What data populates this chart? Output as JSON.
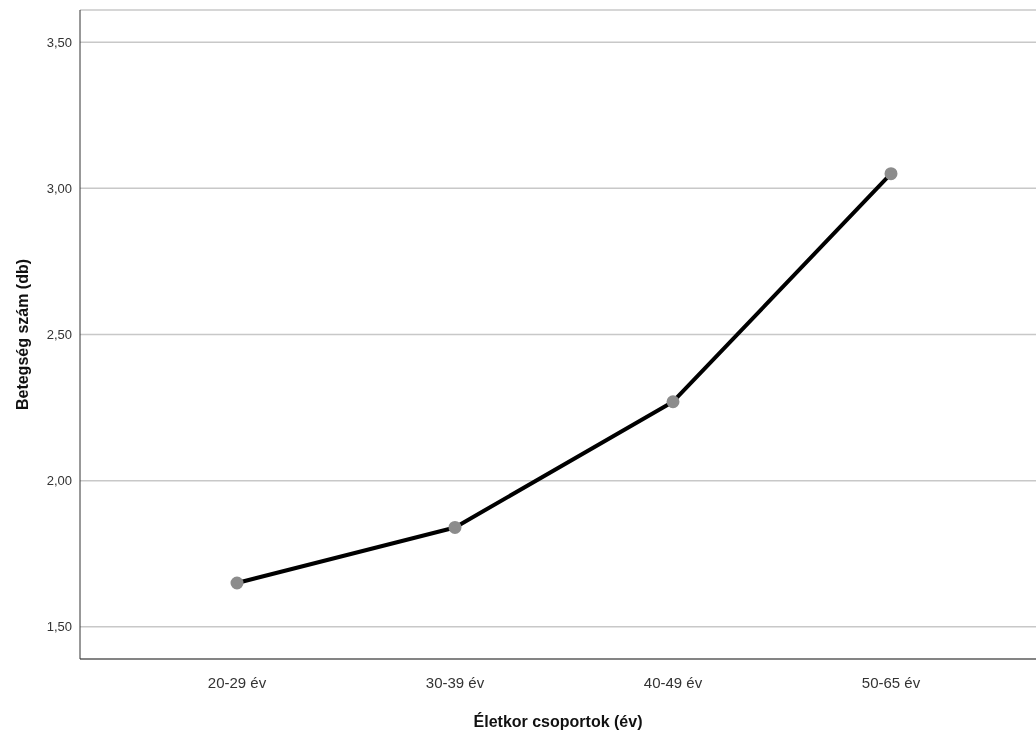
{
  "chart_data": {
    "type": "line",
    "xlabel": "Életkor csoportok (év)",
    "ylabel": "Betegség szám (db)",
    "categories": [
      "20-29 év",
      "30-39 év",
      "40-49 év",
      "50-65 év"
    ],
    "series": [
      {
        "color": "#000000",
        "values": [
          1.65,
          1.84,
          2.27,
          3.05
        ]
      }
    ],
    "ylim": [
      1.39,
      3.61
    ],
    "yticks": [
      {
        "value": 1.5,
        "label": "1,50"
      },
      {
        "value": 2,
        "label": "2,00"
      },
      {
        "value": 2.5,
        "label": "2,50"
      },
      {
        "value": 3,
        "label": "3,00"
      },
      {
        "value": 3.5,
        "label": "3,50"
      }
    ],
    "grid": "y",
    "marker": "circle",
    "line_style": "solid"
  }
}
